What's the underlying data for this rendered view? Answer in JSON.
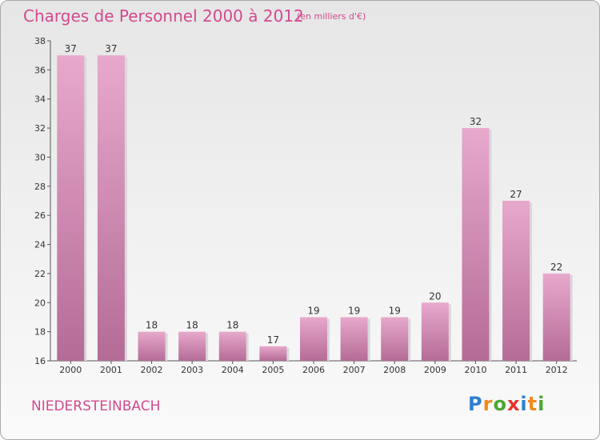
{
  "header": {
    "title": "Charges de Personnel 2000 à 2012",
    "subtitle": "(en milliers d'€)"
  },
  "footer": {
    "commune": "NIEDERSTEINBACH",
    "logo": [
      "P",
      "r",
      "o",
      "x",
      "i",
      "t",
      "i"
    ]
  },
  "colors": {
    "title": "#d2498f",
    "bar_light": "#e8a8cc",
    "bar_dark": "#b46c96",
    "logo": [
      "#2f7fd1",
      "#f08a1c",
      "#4aa832",
      "#e8322b",
      "#2f7fd1",
      "#f08a1c",
      "#4aa832"
    ]
  },
  "chart_data": {
    "type": "bar",
    "title": "Charges de Personnel 2000 à 2012",
    "subtitle": "(en milliers d'€)",
    "categories": [
      "2000",
      "2001",
      "2002",
      "2003",
      "2004",
      "2005",
      "2006",
      "2007",
      "2008",
      "2009",
      "2010",
      "2011",
      "2012"
    ],
    "values": [
      37,
      37,
      18,
      18,
      18,
      17,
      19,
      19,
      19,
      20,
      32,
      27,
      22
    ],
    "ylim": [
      16,
      38
    ],
    "yticks": [
      16,
      18,
      20,
      22,
      24,
      26,
      28,
      30,
      32,
      34,
      36,
      38
    ],
    "grid": false,
    "data_labels": true
  }
}
